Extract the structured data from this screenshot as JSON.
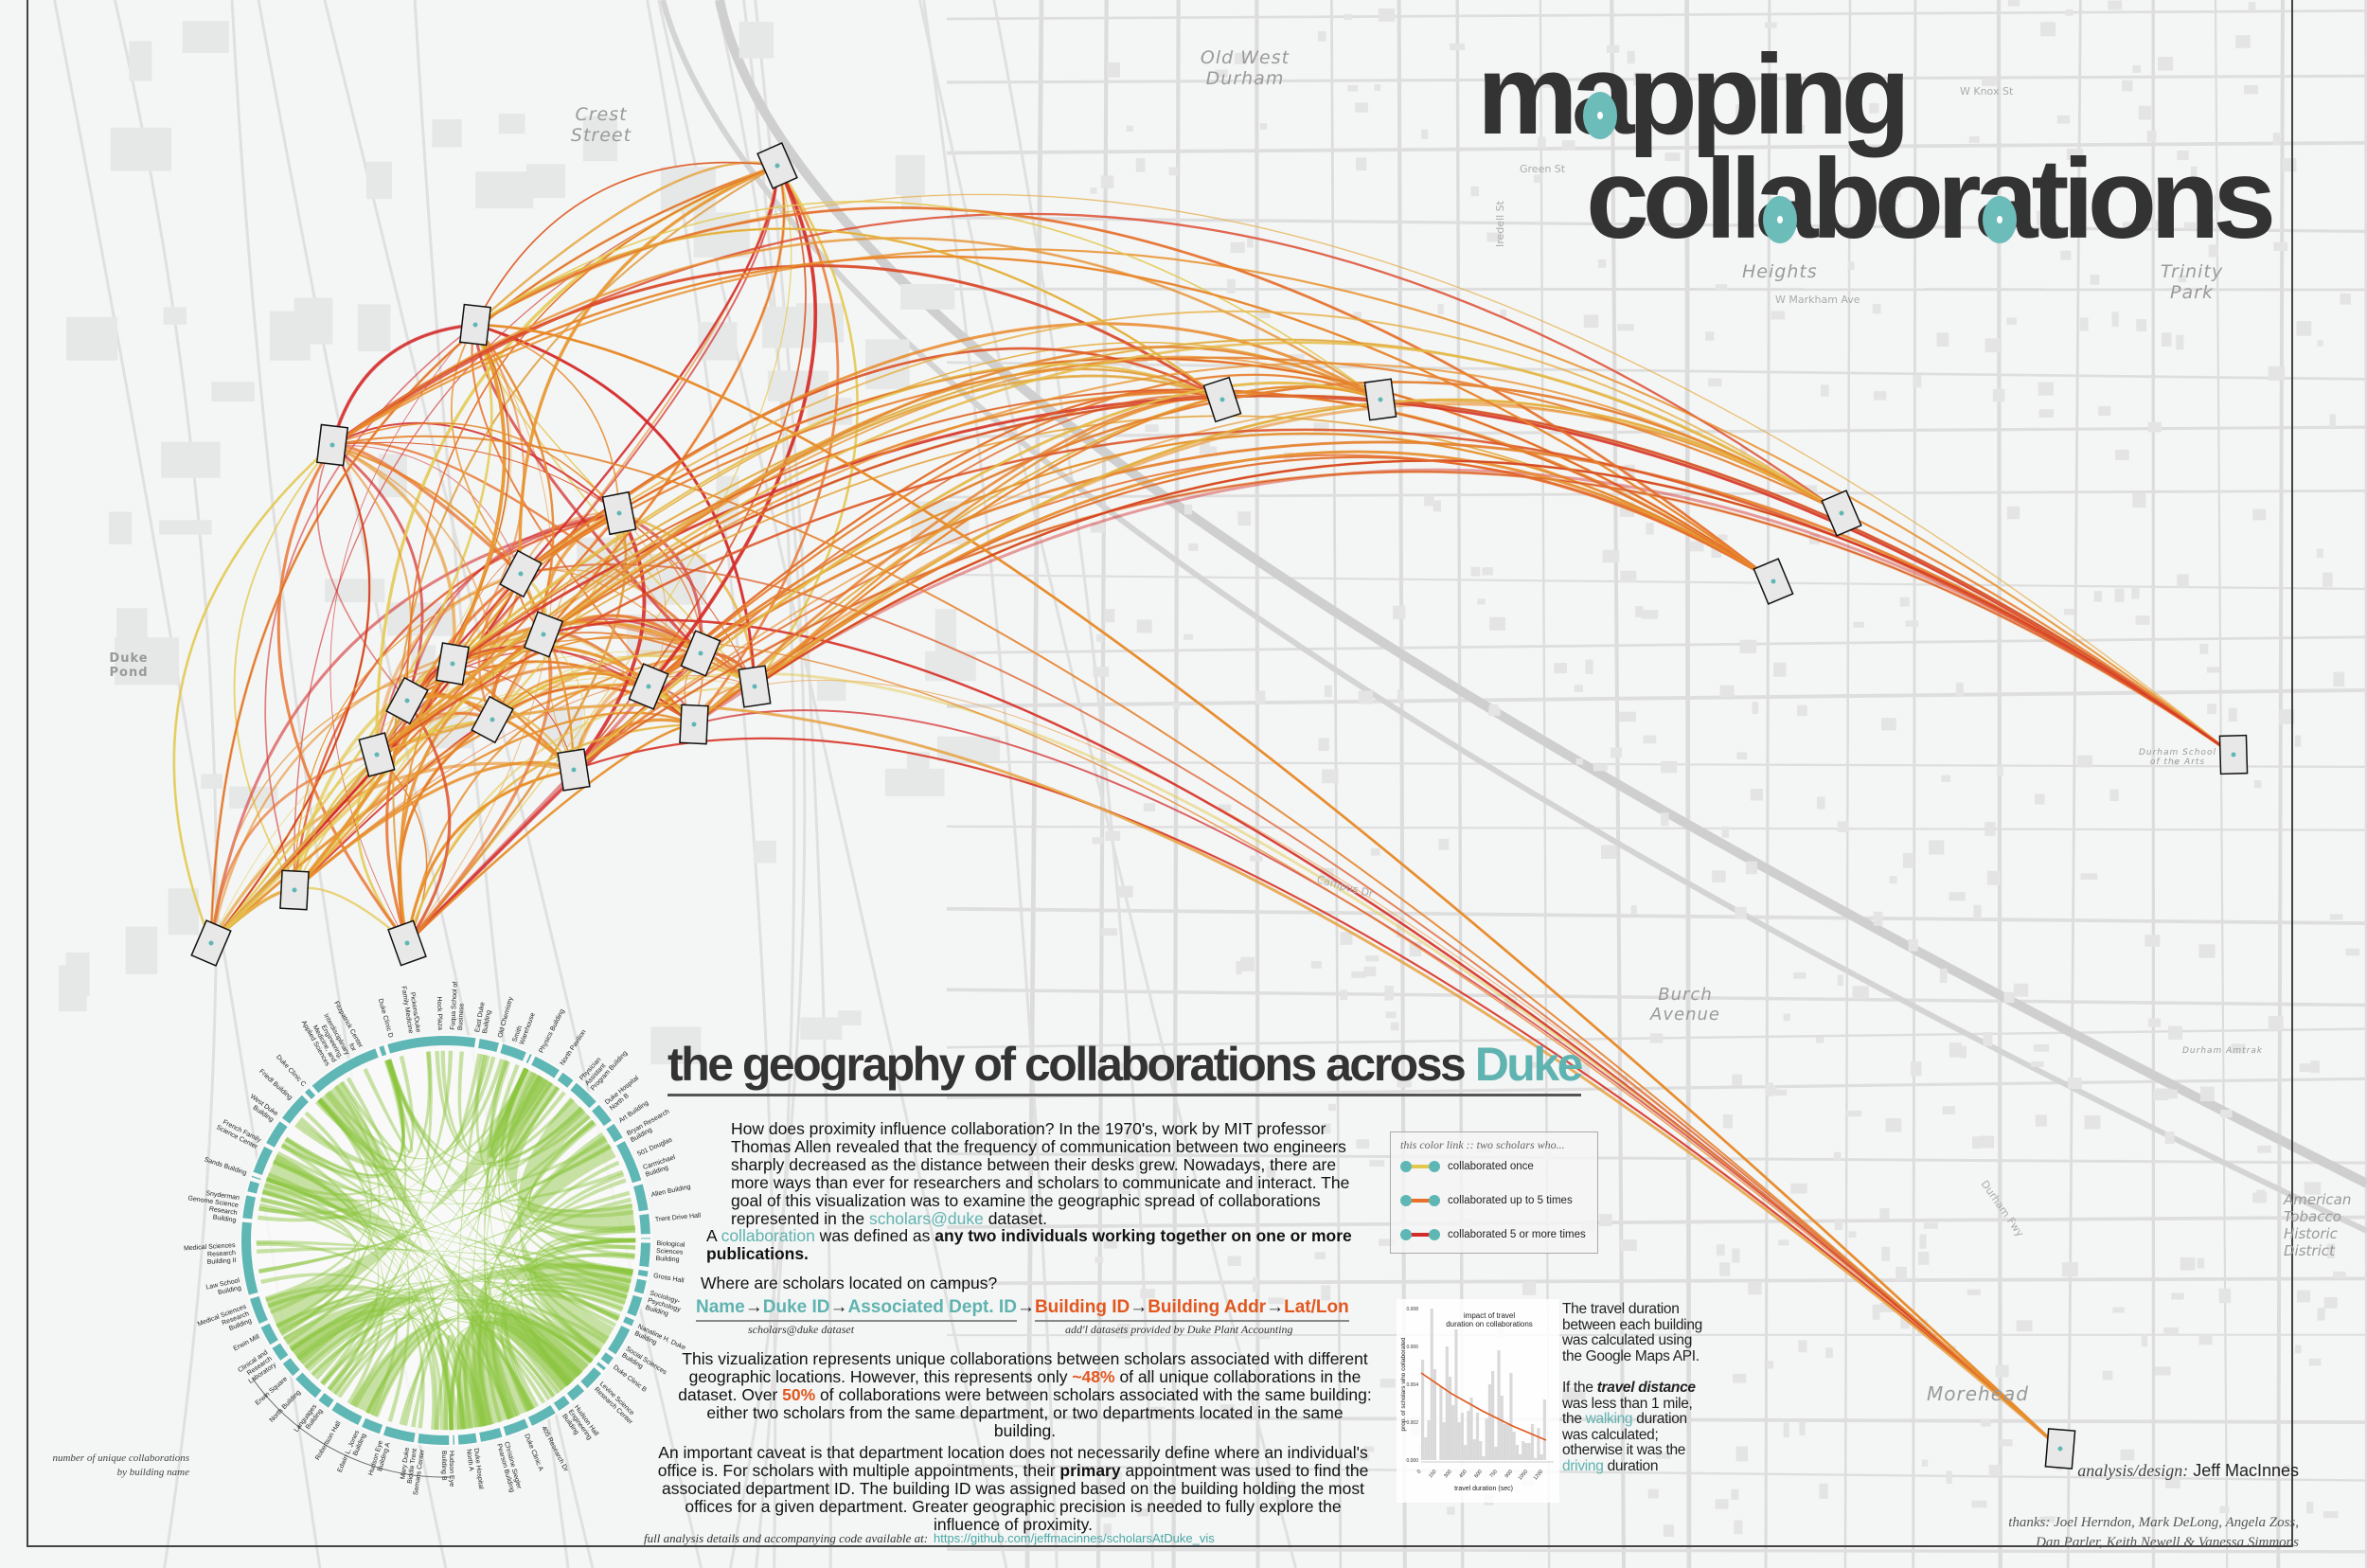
{
  "title": {
    "line1": "mapping",
    "line2": "collaborations"
  },
  "subtitle": {
    "prefix": "the geography of collaborations across ",
    "highlight": "Duke"
  },
  "colors": {
    "teal": "#5fb7b5",
    "chord_green": "#8cc63f",
    "link_once": "#e3c84e",
    "link_up_to_5": "#e8702a",
    "link_5_or_more": "#d42a2a",
    "arc_main": "#e8912d",
    "title_text": "#333333"
  },
  "intro": {
    "p1_before": "How does proximity influence collaboration? In the 1970's, work by MIT professor Thomas Allen revealed that the frequency of communication between two engineers sharply decreased as the distance between their desks grew. Nowadays, there are more ways than ever for researchers and scholars to communicate and interact. The goal of this visualization was to examine the geographic spread of collaborations represented in the ",
    "p1_link": "scholars@duke",
    "p1_after": " dataset.",
    "p2_a": "A ",
    "p2_term": "collaboration",
    "p2_b": " was defined as ",
    "p2_bold": "any two individuals working together on one or more publications.",
    "p3": "Where are scholars located on campus?"
  },
  "flow": {
    "teal_steps": [
      "Name",
      "Duke ID",
      "Associated Dept. ID"
    ],
    "orange_steps": [
      "Building ID",
      "Building Addr",
      "Lat/Lon"
    ],
    "arrow": "→",
    "teal_caption": "scholars@duke dataset",
    "orange_caption": "add'l datasets provided by Duke Plant Accounting"
  },
  "body": {
    "p4_a": "This vizualization represents unique collaborations between scholars associated with different geographic locations. However, this represents only ",
    "p4_pct1": "~48%",
    "p4_b": " of all unique collaborations in the dataset. Over ",
    "p4_pct2": "50%",
    "p4_c": " of collaborations were between scholars associated with the same building: either two scholars from the same department, or two departments located in the same building.",
    "p5_a": "An important caveat is that department location does not necessarily define where an individual's office is. For scholars with multiple appointments, their ",
    "p5_bold": "primary",
    "p5_b": " appointment was used to find the associated department ID. The building ID was assigned based on the building holding the most offices for a given department. Greater geographic precision is needed to fully explore the influence of proximity."
  },
  "footer": {
    "label": "full analysis details and accompanying code available at:",
    "link": "https://github.com/jeffmacinnes/scholarsAtDuke_vis"
  },
  "legend": {
    "header": "this color link  ::  two scholars who...",
    "items": [
      {
        "label": "collaborated once",
        "color": "#e3c84e"
      },
      {
        "label": "collaborated up to 5 times",
        "color": "#e8702a"
      },
      {
        "label": "collaborated 5 or more times",
        "color": "#d42a2a"
      }
    ]
  },
  "side_note": {
    "p1": "The travel duration between each building was calculated using the Google Maps API.",
    "p2_a": "If the ",
    "p2_em": "travel distance",
    "p2_b": " was less than 1 mile, the ",
    "p2_walk": "walking",
    "p2_c": " duration was calculated; otherwise it was the ",
    "p2_drive": "driving",
    "p2_d": " duration"
  },
  "credits": {
    "role": "analysis/design:",
    "name": "Jeff MacInnes",
    "thanks_line1": "thanks: Joel Herndon, Mark DeLong, Angela Zoss,",
    "thanks_line2": "Dan Parler, Keith Newell & Vanessa Simmons"
  },
  "chord": {
    "note": "number of unique collaborations by building name",
    "labels": [
      "Duke Clinic D",
      "Pickens/Duke Family Medicine",
      "Hock Plaza",
      "Fuqua School of Business",
      "East Duke Building",
      "Old Chemistry",
      "Smith Warehouse",
      "Physics Building",
      "North Pavilion",
      "Physician Assistant Program Building",
      "Duke Hospital North B",
      "Art Building",
      "Bryan Research Building",
      "501 Douglas",
      "Carmichael Building",
      "Allen Building",
      "Trent Drive Hall",
      "Biological Sciences Building",
      "Gross Hall",
      "Sociology-Psychology Building",
      "Nanaline H. Duke Building",
      "Social Sciences Building",
      "Duke Clinic B",
      "Levine Science Research Center",
      "Hudson Hall Engineering Building",
      "405 Research Dr",
      "Duke Clinic A",
      "Christine Siegler Pearson Building",
      "Duke Hospital North A",
      "Hudson Eye Building B",
      "Mary Duke Biddle Trent Semans Center",
      "Hudson Eye Building A",
      "Edwin L. Jones Building",
      "Robertson Hall",
      "Languages Building",
      "North Building",
      "Erwin Square",
      "Clinical and Research Laboratory",
      "Erwin Mill",
      "Medical Sciences Research Building",
      "Law School Building",
      "Medical Sciences Research Building II",
      "Snyderman Genome Science Research Building",
      "Sands Building",
      "French Family Science Center",
      "West Duke Building",
      "Friedl Building",
      "Duke Clinic C",
      "Fitzpatrick Center for Interdisciplinary Engineering, Medicine, and Applied Sciences"
    ]
  },
  "map_labels": {
    "old_west_durham": "Old West Durham",
    "crest_street": "Crest Street",
    "duke_pond": "Duke Pond",
    "heights": "Heights",
    "trinity_park": "Trinity Park",
    "burch_avenue": "Burch Avenue",
    "american_tobacco": "American Tobacco Historic District",
    "durham_school_arts": "Durham School of the Arts",
    "durham_amtrak": "Durham Amtrak",
    "morehead": "Morehead",
    "streets": [
      "W Knox St",
      "Green St",
      "W Markham Ave",
      "Iredell St",
      "Campus Dr",
      "Durham Fwy"
    ]
  },
  "chart_data": {
    "type": "bar",
    "title": "impact of travel duration on collaborations",
    "xlabel": "travel duration (sec)",
    "ylabel": "prop. of scholars who collaborated",
    "xticks": [
      0,
      150,
      300,
      450,
      600,
      750,
      900,
      1050,
      1200
    ],
    "yticks": [
      0.0,
      0.002,
      0.004,
      0.006,
      0.008
    ],
    "xlim": [
      0,
      1230
    ],
    "ylim": [
      0,
      0.008
    ],
    "x": [
      0,
      30,
      60,
      90,
      120,
      150,
      180,
      210,
      240,
      270,
      300,
      330,
      360,
      390,
      420,
      450,
      480,
      510,
      540,
      570,
      600,
      630,
      660,
      690,
      720,
      750,
      780,
      810,
      840,
      870,
      900,
      930,
      960,
      990,
      1020,
      1050,
      1080,
      1110,
      1140,
      1170,
      1200
    ],
    "values": [
      0.0053,
      0.0012,
      0.0021,
      0.008,
      0.0048,
      0,
      0.0039,
      0.002,
      0.006,
      0.0044,
      0.0029,
      0.0069,
      0.002,
      0.0025,
      0.0008,
      0.0026,
      0.0033,
      0.0011,
      0.0025,
      0.001,
      0.0002,
      0.0022,
      0.004,
      0.0047,
      0.0007,
      0.0058,
      0.0034,
      0.0019,
      0.0019,
      0.0046,
      0.0015,
      0.0008,
      0.0003,
      0.001,
      0.0009,
      0.0009,
      0.0019,
      0.0001,
      0.0017,
      0.0003,
      0.0032
    ],
    "fit_line": {
      "x": [
        0,
        300,
        600,
        900,
        1230
      ],
      "y": [
        0.0046,
        0.0035,
        0.0026,
        0.0018,
        0.00105
      ]
    },
    "bar_color": "#d9d9d9",
    "line_color": "#e2571e",
    "grid": false
  }
}
